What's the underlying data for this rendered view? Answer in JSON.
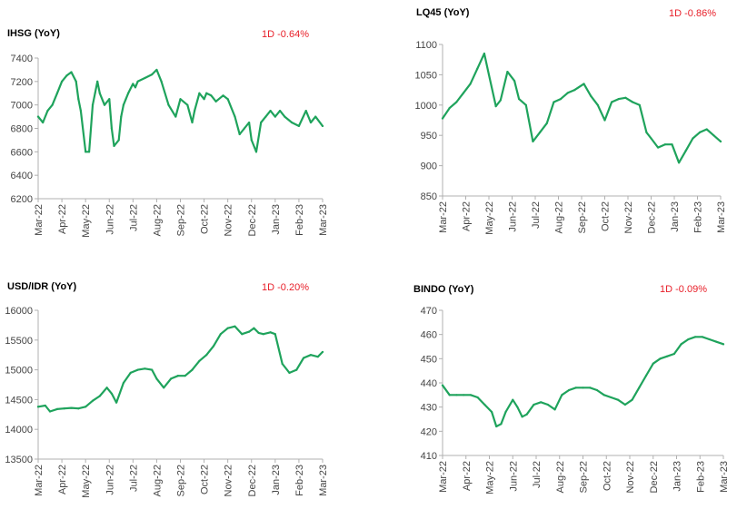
{
  "charts": [
    {
      "type": "line",
      "title": "IHSG (YoY)",
      "change": "1D -0.64%",
      "line_color": "#1fa35c",
      "ylim": [
        6200,
        7400
      ],
      "yticks": [
        6200,
        6400,
        6600,
        6800,
        7000,
        7200,
        7400
      ],
      "xticks": [
        "Mar-22",
        "Apr-22",
        "May-22",
        "Jun-22",
        "Jul-22",
        "Aug-22",
        "Sep-22",
        "Oct-22",
        "Nov-22",
        "Dec-22",
        "Jan-23",
        "Feb-23",
        "Mar-23"
      ],
      "x": [
        0,
        0.2,
        0.4,
        0.6,
        0.8,
        1,
        1.2,
        1.4,
        1.6,
        1.7,
        1.8,
        2.0,
        2.15,
        2.3,
        2.4,
        2.5,
        2.6,
        2.8,
        3.0,
        3.1,
        3.2,
        3.4,
        3.5,
        3.6,
        3.7,
        3.8,
        4.0,
        4.1,
        4.2,
        4.5,
        4.8,
        5.0,
        5.2,
        5.5,
        5.8,
        6.0,
        6.3,
        6.5,
        6.6,
        6.8,
        7.0,
        7.1,
        7.3,
        7.5,
        7.8,
        8.0,
        8.3,
        8.5,
        8.7,
        8.9,
        9.0,
        9.2,
        9.4,
        9.6,
        9.8,
        10.0,
        10.2,
        10.4,
        10.7,
        11.0,
        11.3,
        11.5,
        11.7,
        12.0
      ],
      "values": [
        6900,
        6850,
        6950,
        7000,
        7100,
        7200,
        7250,
        7280,
        7200,
        7050,
        6950,
        6600,
        6600,
        7000,
        7100,
        7200,
        7100,
        7000,
        7050,
        6800,
        6650,
        6700,
        6900,
        7000,
        7050,
        7100,
        7180,
        7150,
        7200,
        7230,
        7260,
        7300,
        7200,
        7000,
        6900,
        7050,
        7000,
        6850,
        6950,
        7100,
        7050,
        7100,
        7080,
        7030,
        7080,
        7050,
        6900,
        6750,
        6800,
        6850,
        6700,
        6600,
        6850,
        6900,
        6950,
        6900,
        6950,
        6900,
        6850,
        6820,
        6950,
        6850,
        6900,
        6820
      ]
    },
    {
      "type": "line",
      "title": "LQ45 (YoY)",
      "change": "1D -0.86%",
      "line_color": "#1fa35c",
      "ylim": [
        850,
        1100
      ],
      "yticks": [
        850,
        900,
        950,
        1000,
        1050,
        1100
      ],
      "xticks": [
        "Mar-22",
        "Apr-22",
        "May-22",
        "Jun-22",
        "Jul-22",
        "Aug-22",
        "Sep-22",
        "Oct-22",
        "Nov-22",
        "Dec-22",
        "Jan-23",
        "Feb-23",
        "Mar-23"
      ],
      "x": [
        0,
        0.3,
        0.6,
        0.9,
        1.2,
        1.5,
        1.8,
        2.0,
        2.3,
        2.5,
        2.8,
        3.1,
        3.3,
        3.6,
        3.9,
        4.2,
        4.5,
        4.8,
        5.1,
        5.4,
        5.7,
        6.1,
        6.4,
        6.7,
        7.0,
        7.3,
        7.6,
        7.9,
        8.2,
        8.5,
        8.8,
        9.0,
        9.3,
        9.6,
        9.9,
        10.2,
        10.5,
        10.8,
        11.1,
        11.4,
        11.7,
        12.0
      ],
      "values": [
        978,
        995,
        1005,
        1020,
        1035,
        1060,
        1085,
        1050,
        998,
        1008,
        1055,
        1040,
        1010,
        1000,
        940,
        955,
        970,
        1005,
        1010,
        1020,
        1025,
        1035,
        1015,
        1000,
        975,
        1005,
        1010,
        1012,
        1005,
        1000,
        955,
        945,
        930,
        935,
        935,
        905,
        925,
        945,
        955,
        960,
        950,
        940
      ]
    },
    {
      "type": "line",
      "title": "USD/IDR (YoY)",
      "change": "1D -0.20%",
      "line_color": "#1fa35c",
      "ylim": [
        13500,
        16000
      ],
      "yticks": [
        13500,
        14000,
        14500,
        15000,
        15500,
        16000
      ],
      "xticks": [
        "Mar-22",
        "Apr-22",
        "May-22",
        "Jun-22",
        "Jul-22",
        "Aug-22",
        "Sep-22",
        "Oct-22",
        "Nov-22",
        "Dec-22",
        "Jan-23",
        "Feb-23",
        "Mar-23"
      ],
      "x": [
        0,
        0.3,
        0.5,
        0.8,
        1.1,
        1.4,
        1.7,
        2.0,
        2.3,
        2.6,
        2.9,
        3.1,
        3.3,
        3.6,
        3.9,
        4.2,
        4.5,
        4.8,
        5.0,
        5.3,
        5.6,
        5.9,
        6.2,
        6.5,
        6.8,
        7.1,
        7.4,
        7.7,
        8.0,
        8.3,
        8.6,
        8.9,
        9.1,
        9.3,
        9.5,
        9.8,
        10.0,
        10.3,
        10.6,
        10.9,
        11.2,
        11.5,
        11.8,
        12.0
      ],
      "values": [
        14380,
        14400,
        14300,
        14340,
        14350,
        14360,
        14350,
        14380,
        14480,
        14560,
        14700,
        14600,
        14450,
        14780,
        14950,
        15000,
        15020,
        15000,
        14850,
        14700,
        14850,
        14900,
        14900,
        15000,
        15150,
        15250,
        15400,
        15600,
        15700,
        15730,
        15600,
        15640,
        15700,
        15620,
        15600,
        15630,
        15600,
        15100,
        14950,
        15000,
        15200,
        15250,
        15220,
        15300
      ]
    },
    {
      "type": "line",
      "title": "BINDO (YoY)",
      "change": "1D -0.09%",
      "line_color": "#1fa35c",
      "ylim": [
        410,
        470
      ],
      "yticks": [
        410,
        420,
        430,
        440,
        450,
        460,
        470
      ],
      "xticks": [
        "Mar-22",
        "Apr-22",
        "May-22",
        "Jun-22",
        "Jul-22",
        "Aug-22",
        "Sep-22",
        "Oct-22",
        "Nov-22",
        "Dec-22",
        "Jan-23",
        "Feb-23",
        "Mar-23"
      ],
      "x": [
        0,
        0.3,
        0.6,
        0.9,
        1.2,
        1.5,
        1.8,
        2.1,
        2.3,
        2.5,
        2.7,
        3.0,
        3.2,
        3.4,
        3.6,
        3.9,
        4.2,
        4.5,
        4.8,
        5.1,
        5.4,
        5.7,
        6.0,
        6.3,
        6.6,
        6.9,
        7.2,
        7.5,
        7.8,
        8.1,
        8.4,
        8.7,
        9.0,
        9.3,
        9.6,
        9.9,
        10.2,
        10.5,
        10.8,
        11.1,
        11.4,
        11.7,
        12.0
      ],
      "values": [
        439,
        435,
        435,
        435,
        435,
        434,
        431,
        428,
        422,
        423,
        428,
        433,
        430,
        426,
        427,
        431,
        432,
        431,
        429,
        435,
        437,
        438,
        438,
        438,
        437,
        435,
        434,
        433,
        431,
        433,
        438,
        443,
        448,
        450,
        451,
        452,
        456,
        458,
        459,
        459,
        458,
        457,
        456
      ]
    }
  ]
}
